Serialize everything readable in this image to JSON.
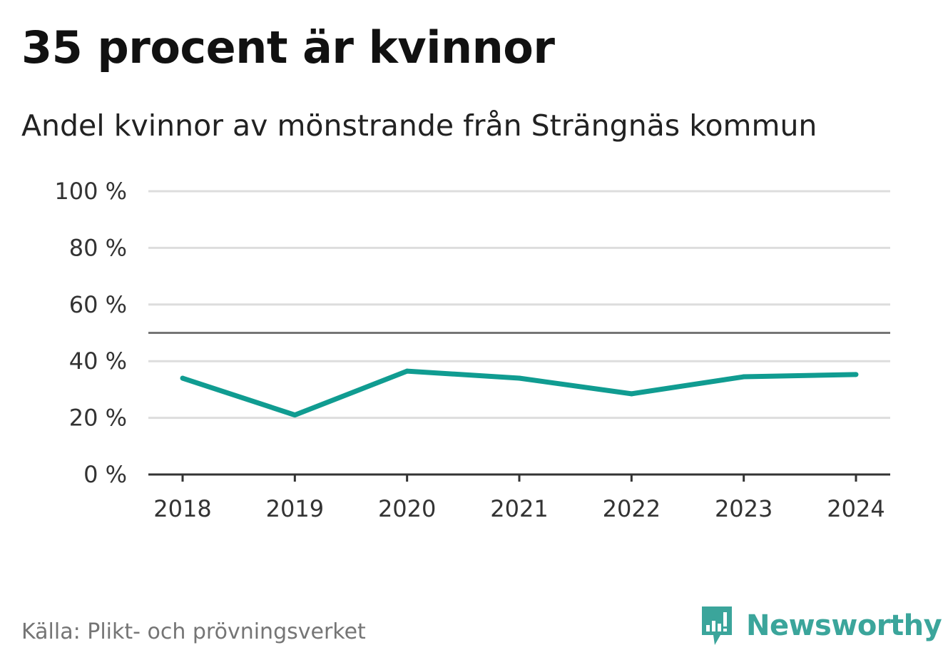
{
  "title": "35 procent är kvinnor",
  "subtitle": "Andel kvinnor av mönstrande från Strängnäs kommun",
  "source": "Källa: Plikt- och prövningsverket",
  "brand": {
    "name": "Newsworthy",
    "logo_icon": "bar-chart-icon",
    "color": "#3ba59b"
  },
  "colors": {
    "line": "#109c91",
    "grid": "#dddddd",
    "reference": "#757575",
    "axis": "#333333"
  },
  "chart_data": {
    "type": "line",
    "title": "35 procent är kvinnor",
    "subtitle": "Andel kvinnor av mönstrande från Strängnäs kommun",
    "xlabel": "",
    "ylabel": "",
    "categories": [
      "2018",
      "2019",
      "2020",
      "2021",
      "2022",
      "2023",
      "2024"
    ],
    "series": [
      {
        "name": "Andel kvinnor",
        "values": [
          34,
          21,
          36.5,
          34,
          28.5,
          34.5,
          35.3
        ]
      }
    ],
    "ylim": [
      0,
      100
    ],
    "yticks": [
      0,
      20,
      40,
      60,
      80,
      100
    ],
    "ytick_labels": [
      "0 %",
      "20 %",
      "40 %",
      "60 %",
      "80 %",
      "100 %"
    ],
    "reference_line": 50,
    "grid": true,
    "legend": "none"
  }
}
